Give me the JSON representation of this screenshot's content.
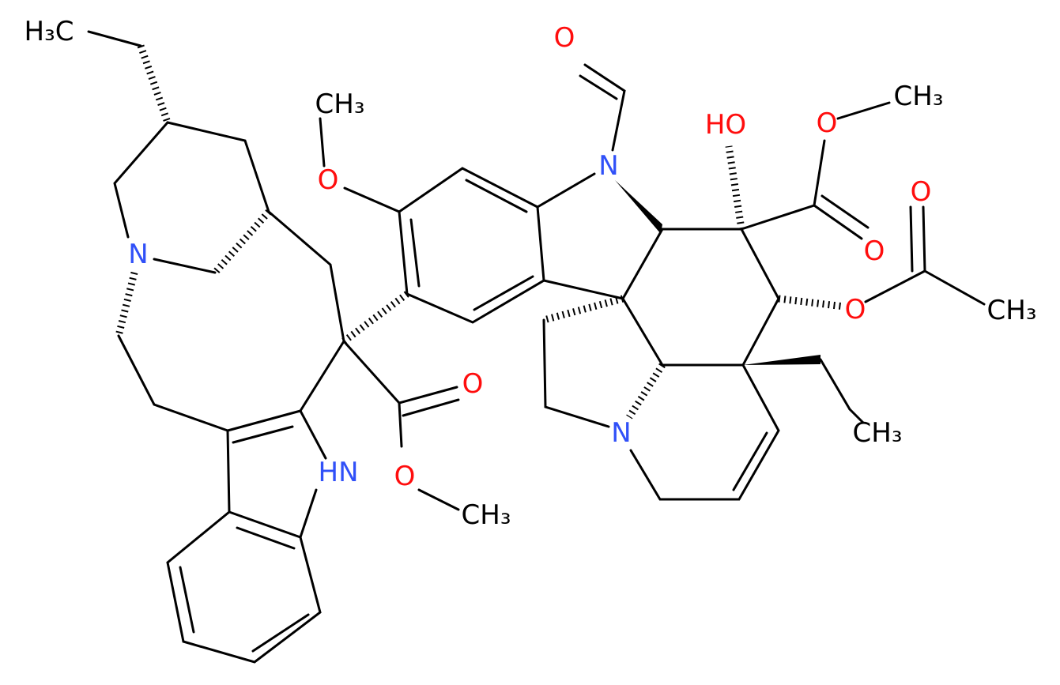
{
  "atoms": [
    "H₃C",
    "CH₃",
    "O",
    "O",
    "N",
    "HO",
    "O",
    "CH₃",
    "O",
    "O",
    "O",
    "CH₃",
    "N",
    "O",
    "O",
    "CH₃",
    "HN",
    "N",
    "CH₃"
  ]
}
